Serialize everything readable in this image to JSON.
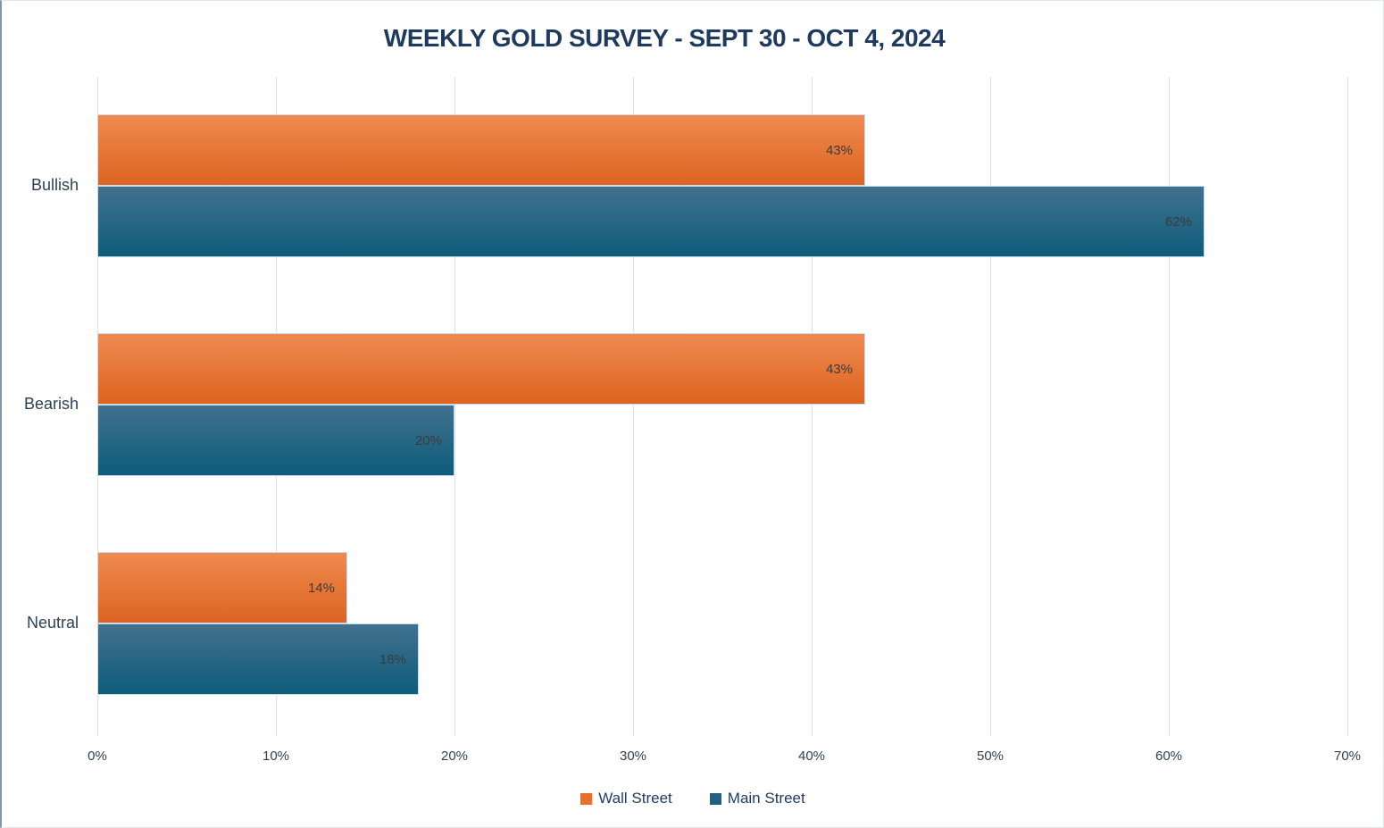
{
  "title": "WEEKLY GOLD SURVEY - SEPT 30 - OCT 4, 2024",
  "colors": {
    "title_text": "#1e3a5f",
    "axis_text": "#2e4154",
    "data_label_text": "#3b3b3b",
    "gridline": "#d9e5f2",
    "bar_outline": "#c9dcee",
    "page_border": "#dfe9f4",
    "page_border_left": "#8397ad"
  },
  "chart_data": {
    "type": "bar",
    "orientation": "horizontal",
    "title": "WEEKLY GOLD SURVEY - SEPT 30 - OCT 4, 2024",
    "categories": [
      "Bullish",
      "Bearish",
      "Neutral"
    ],
    "series": [
      {
        "name": "Wall Street",
        "values": [
          43,
          43,
          14
        ],
        "color_top": "#ef8a50",
        "color_bottom": "#dd6420",
        "legend_color": "#e8702d"
      },
      {
        "name": "Main Street",
        "values": [
          62,
          20,
          18
        ],
        "color_top": "#41718e",
        "color_bottom": "#0e5c7b",
        "legend_color": "#1f6285"
      }
    ],
    "data_labels": [
      [
        "43%",
        "43%",
        "14%"
      ],
      [
        "62%",
        "20%",
        "18%"
      ]
    ],
    "xlim": [
      0,
      70
    ],
    "x_ticks": [
      "0%",
      "10%",
      "20%",
      "30%",
      "40%",
      "50%",
      "60%",
      "70%"
    ],
    "grid": "vertical-only",
    "legend_position": "bottom-center"
  }
}
